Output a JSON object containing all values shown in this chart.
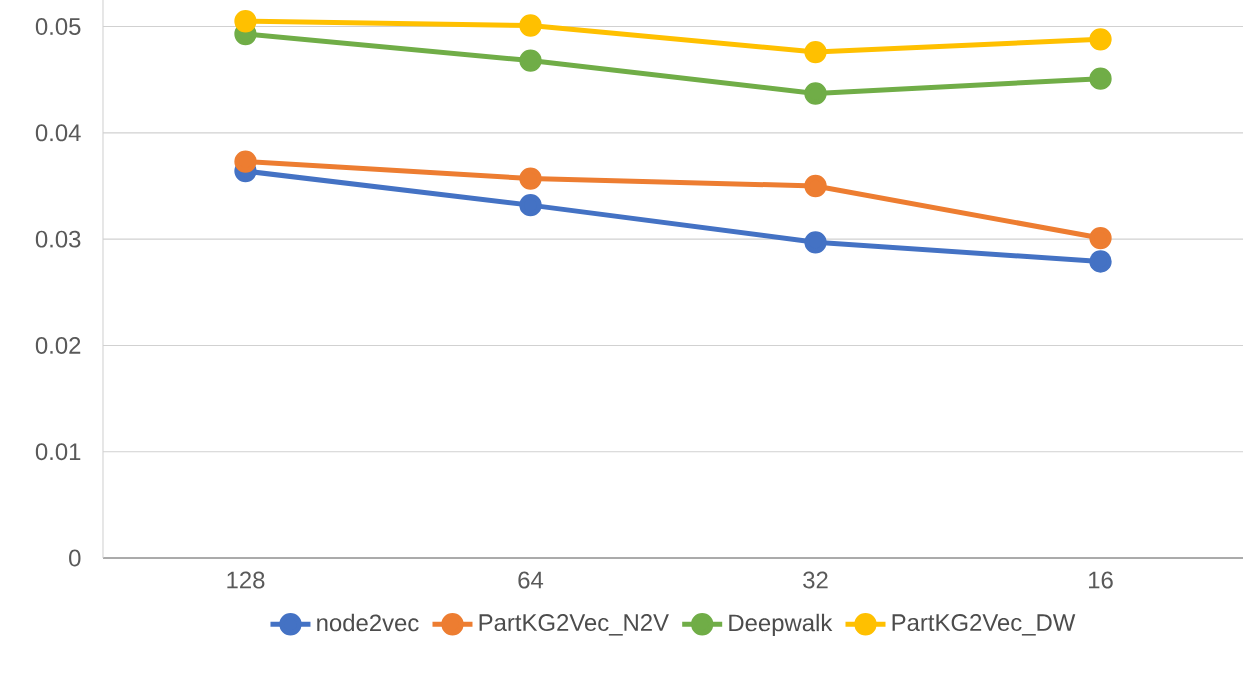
{
  "chart_data": {
    "type": "line",
    "categories": [
      "128",
      "64",
      "32",
      "16"
    ],
    "series": [
      {
        "name": "node2vec",
        "color": "#4472c4",
        "values": [
          0.0364,
          0.0332,
          0.0297,
          0.0279
        ]
      },
      {
        "name": "PartKG2Vec_N2V",
        "color": "#ed7d31",
        "values": [
          0.0373,
          0.0357,
          0.035,
          0.0301
        ]
      },
      {
        "name": "Deepwalk",
        "color": "#70ad47",
        "values": [
          0.0493,
          0.0468,
          0.0437,
          0.0451
        ]
      },
      {
        "name": "PartKG2Vec_DW",
        "color": "#ffc000",
        "values": [
          0.0505,
          0.0501,
          0.0476,
          0.0488
        ]
      }
    ],
    "ylim": [
      0,
      0.0525
    ],
    "yticks": [
      0,
      0.01,
      0.02,
      0.03,
      0.04,
      0.05
    ],
    "grid": "y",
    "legend": "bottom",
    "marker": "circle",
    "line_style": "solid"
  }
}
